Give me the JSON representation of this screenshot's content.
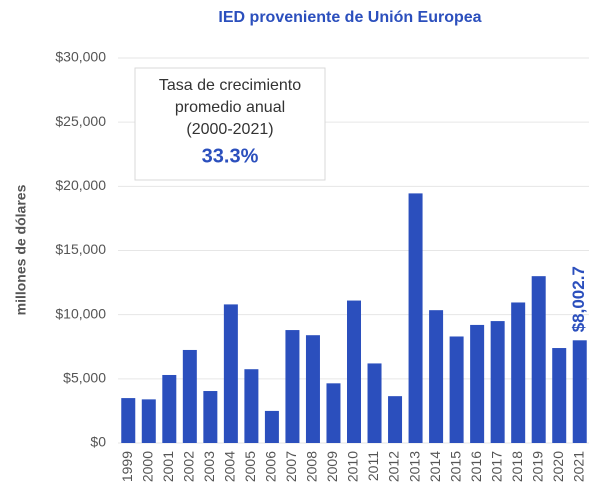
{
  "chart_data": {
    "type": "bar",
    "title": "IED proveniente de Unión Europea",
    "y_label": "millones de dólares",
    "categories": [
      "1999",
      "2000",
      "2001",
      "2002",
      "2003",
      "2004",
      "2005",
      "2006",
      "2007",
      "2008",
      "2009",
      "2010",
      "2011",
      "2012",
      "2013",
      "2014",
      "2015",
      "2016",
      "2017",
      "2018",
      "2019",
      "2020",
      "2021"
    ],
    "values": [
      3500,
      3400,
      5300,
      7250,
      4050,
      10800,
      5750,
      2500,
      8800,
      8400,
      4650,
      11100,
      6200,
      3650,
      19450,
      10350,
      8300,
      9200,
      9500,
      10950,
      13000,
      7400,
      8002.7
    ],
    "value_labels": [
      null,
      null,
      null,
      null,
      null,
      null,
      null,
      null,
      null,
      null,
      null,
      null,
      null,
      null,
      null,
      null,
      null,
      null,
      null,
      null,
      null,
      null,
      "$8,002.7"
    ],
    "color": "#2b4fbd",
    "ylim": [
      0,
      30000
    ],
    "yticks": [
      {
        "value": 0,
        "label": "$0"
      },
      {
        "value": 5000,
        "label": "$5,000"
      },
      {
        "value": 10000,
        "label": "$10,000"
      },
      {
        "value": 15000,
        "label": "$15,000"
      },
      {
        "value": 20000,
        "label": "$20,000"
      },
      {
        "value": 25000,
        "label": "$25,000"
      },
      {
        "value": 30000,
        "label": "$30,000"
      }
    ],
    "grid": true,
    "annotation": {
      "lines": [
        "Tasa de crecimiento",
        "promedio anual",
        "(2000-2021)"
      ],
      "highlight": "33.3%"
    }
  }
}
